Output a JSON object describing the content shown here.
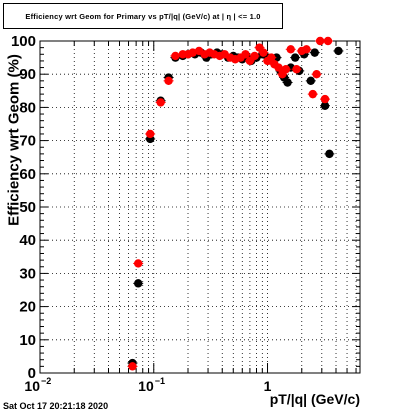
{
  "title": "Efficiency wrt Geom for Primary vs pT/|q| (GeV/c) at | η | <= 1.0",
  "date_stamp": "Sat Oct 17 20:21:18 2020",
  "colors": {
    "series_black": "#000000",
    "series_red": "#ff0000",
    "grid": "#000000",
    "frame": "#000000"
  },
  "chart_data": {
    "type": "scatter",
    "title": "Efficiency wrt Geom for Primary vs pT/|q| (GeV/c) at | η | <= 1.0",
    "xlabel": "pT/|q| (GeV/c)",
    "ylabel": "Efficiency wrt Geom (%)",
    "x_scale": "log",
    "xlim": [
      0.01,
      6.5
    ],
    "ylim": [
      0,
      100
    ],
    "x_ticks": [
      {
        "base": "10",
        "exp": "−2",
        "value": 0.01
      },
      {
        "base": "10",
        "exp": "−1",
        "value": 0.1
      },
      {
        "base": "1",
        "exp": "",
        "value": 1
      }
    ],
    "y_ticks": [
      "0",
      "10",
      "20",
      "30",
      "40",
      "50",
      "60",
      "70",
      "80",
      "90",
      "100"
    ],
    "grid": true,
    "series": [
      {
        "color": "#000000",
        "points": [
          [
            0.065,
            3
          ],
          [
            0.073,
            27
          ],
          [
            0.093,
            70.5
          ],
          [
            0.115,
            82
          ],
          [
            0.135,
            89
          ],
          [
            0.155,
            95
          ],
          [
            0.18,
            95.5
          ],
          [
            0.2,
            96
          ],
          [
            0.23,
            96
          ],
          [
            0.26,
            96.5
          ],
          [
            0.29,
            95
          ],
          [
            0.32,
            96
          ],
          [
            0.36,
            96.5
          ],
          [
            0.4,
            96
          ],
          [
            0.45,
            95
          ],
          [
            0.5,
            95.5
          ],
          [
            0.55,
            95
          ],
          [
            0.6,
            94.5
          ],
          [
            0.66,
            95
          ],
          [
            0.72,
            94
          ],
          [
            0.8,
            95
          ],
          [
            0.9,
            96
          ],
          [
            1.0,
            95
          ],
          [
            1.1,
            94
          ],
          [
            1.2,
            95
          ],
          [
            1.3,
            91
          ],
          [
            1.4,
            89
          ],
          [
            1.5,
            87.5
          ],
          [
            1.6,
            92
          ],
          [
            1.75,
            95
          ],
          [
            1.9,
            91
          ],
          [
            2.1,
            96
          ],
          [
            2.4,
            88
          ],
          [
            2.6,
            96.5
          ],
          [
            3.2,
            80.5
          ],
          [
            3.5,
            66
          ],
          [
            4.2,
            97
          ]
        ]
      },
      {
        "color": "#ff0000",
        "points": [
          [
            0.065,
            2
          ],
          [
            0.073,
            33
          ],
          [
            0.093,
            72
          ],
          [
            0.115,
            81.5
          ],
          [
            0.135,
            88
          ],
          [
            0.155,
            95.5
          ],
          [
            0.18,
            96
          ],
          [
            0.2,
            96
          ],
          [
            0.22,
            96.5
          ],
          [
            0.25,
            97
          ],
          [
            0.28,
            96
          ],
          [
            0.31,
            96.5
          ],
          [
            0.34,
            96
          ],
          [
            0.38,
            95.5
          ],
          [
            0.42,
            96
          ],
          [
            0.47,
            95
          ],
          [
            0.52,
            94.5
          ],
          [
            0.58,
            95
          ],
          [
            0.64,
            96
          ],
          [
            0.7,
            94
          ],
          [
            0.77,
            95.5
          ],
          [
            0.85,
            98
          ],
          [
            0.92,
            96.5
          ],
          [
            1.0,
            94
          ],
          [
            1.08,
            95
          ],
          [
            1.15,
            93
          ],
          [
            1.25,
            92
          ],
          [
            1.35,
            90
          ],
          [
            1.45,
            91.5
          ],
          [
            1.6,
            97.5
          ],
          [
            1.8,
            91.5
          ],
          [
            2.0,
            97
          ],
          [
            2.2,
            97.5
          ],
          [
            2.5,
            84
          ],
          [
            2.7,
            90
          ],
          [
            2.9,
            100
          ],
          [
            3.2,
            82.5
          ],
          [
            3.4,
            100
          ]
        ]
      }
    ]
  }
}
